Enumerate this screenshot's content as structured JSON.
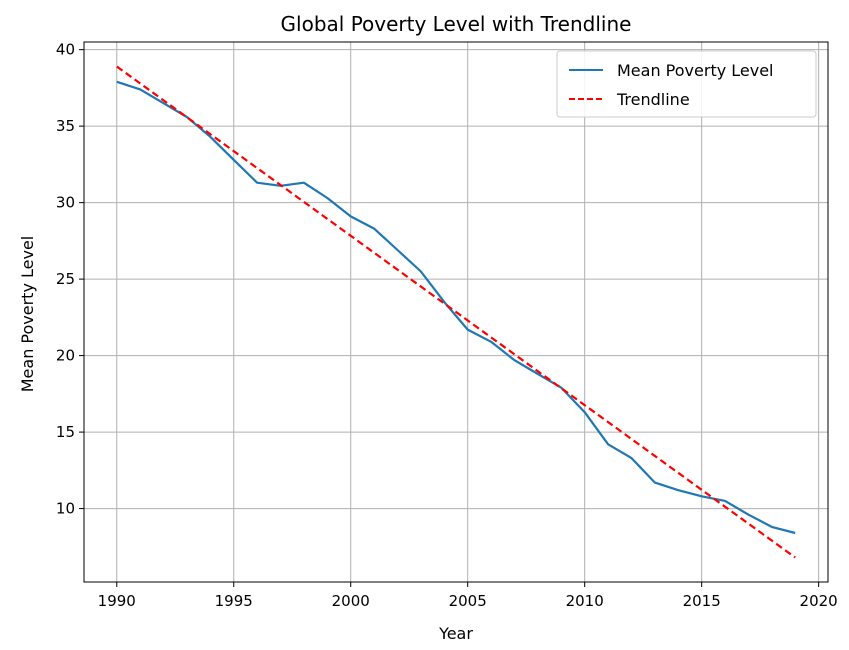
{
  "chart_data": {
    "type": "line",
    "title": "Global Poverty Level with Trendline",
    "xlabel": "Year",
    "ylabel": "Mean Poverty Level",
    "xlim": [
      1988.6,
      2020.4
    ],
    "ylim": [
      5.2,
      40.5
    ],
    "x_ticks": [
      "1990",
      "1995",
      "2000",
      "2005",
      "2010",
      "2015",
      "2020"
    ],
    "y_ticks": [
      "10",
      "15",
      "20",
      "25",
      "30",
      "35",
      "40"
    ],
    "grid": true,
    "legend_position": "upper right",
    "series": [
      {
        "name": "Mean Poverty Level",
        "color": "#1f77b4",
        "style": "solid",
        "x": [
          1990,
          1991,
          1992,
          1993,
          1994,
          1995,
          1996,
          1997,
          1998,
          1999,
          2000,
          2001,
          2002,
          2003,
          2004,
          2005,
          2006,
          2007,
          2008,
          2009,
          2010,
          2011,
          2012,
          2013,
          2014,
          2015,
          2016,
          2017,
          2018,
          2019
        ],
        "y": [
          37.9,
          37.4,
          36.5,
          35.6,
          34.3,
          32.8,
          31.3,
          31.1,
          31.3,
          30.3,
          29.1,
          28.3,
          26.9,
          25.5,
          23.5,
          21.7,
          20.9,
          19.7,
          18.8,
          17.9,
          16.3,
          14.2,
          13.3,
          11.7,
          11.2,
          10.8,
          10.5,
          9.6,
          8.8,
          8.4
        ]
      },
      {
        "name": "Trendline",
        "color": "#ff0000",
        "style": "dashed",
        "x": [
          1990,
          2019
        ],
        "y": [
          38.9,
          6.8
        ]
      }
    ]
  }
}
